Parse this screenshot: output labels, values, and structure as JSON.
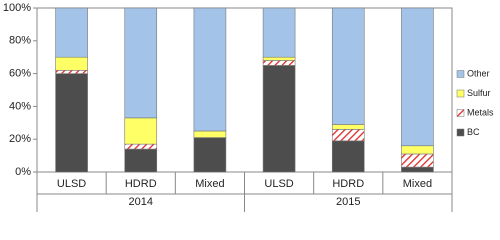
{
  "chart_data": {
    "type": "bar",
    "stacked": true,
    "categories": [
      "ULSD",
      "HDRD",
      "Mixed",
      "ULSD",
      "HDRD",
      "Mixed"
    ],
    "groups": [
      "2014",
      "2015"
    ],
    "series": [
      {
        "name": "BC",
        "color": "#4d4d4d",
        "values": [
          60,
          14,
          21,
          65,
          19,
          3
        ]
      },
      {
        "name": "Metals",
        "color": "#e02020",
        "hatch": true,
        "values": [
          2,
          3,
          0,
          3,
          7,
          8
        ]
      },
      {
        "name": "Sulfur",
        "color": "#ffff66",
        "values": [
          8,
          16,
          4,
          2,
          3,
          5
        ]
      },
      {
        "name": "Other",
        "color": "#a3c4e8",
        "values": [
          30,
          67,
          75,
          30,
          71,
          84
        ]
      }
    ],
    "ylim": [
      0,
      100
    ],
    "yticks": [
      {
        "value": 0,
        "label": "0%"
      },
      {
        "value": 20,
        "label": "20%"
      },
      {
        "value": 40,
        "label": "40%"
      },
      {
        "value": 60,
        "label": "60%"
      },
      {
        "value": 80,
        "label": "80%"
      },
      {
        "value": 100,
        "label": "100%"
      }
    ],
    "legend": "right"
  }
}
